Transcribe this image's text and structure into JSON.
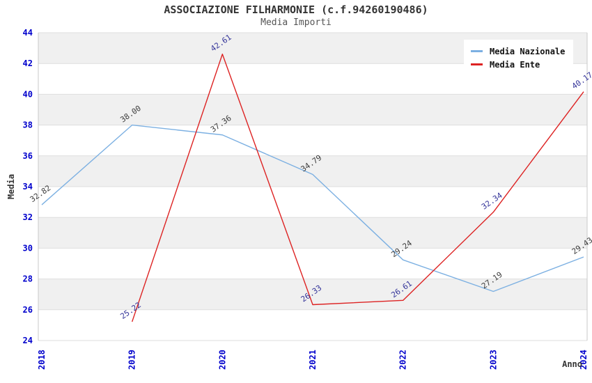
{
  "header": {
    "title": "ASSOCIAZIONE FILHARMONIE (c.f.94260190486)",
    "subtitle": "Media Importi"
  },
  "legend": {
    "items": [
      {
        "label": "Media Nazionale",
        "color": "#7cb0e2"
      },
      {
        "label": "Media Ente",
        "color": "#dd2222"
      }
    ]
  },
  "axes": {
    "y_label": "Media",
    "x_label": "Anno",
    "tick_color": "#0000cc",
    "axis_label_color": "#333333",
    "y_ticks": [
      "24",
      "26",
      "28",
      "30",
      "32",
      "34",
      "36",
      "38",
      "40",
      "42",
      "44"
    ],
    "x_ticks": [
      "2018",
      "2019",
      "2020",
      "2021",
      "2022",
      "2023",
      "2024"
    ]
  },
  "chart_data": {
    "type": "line",
    "title": "ASSOCIAZIONE FILHARMONIE (c.f.94260190486)",
    "subtitle": "Media Importi",
    "xlabel": "Anno",
    "ylabel": "Media",
    "x": [
      2018,
      2019,
      2020,
      2021,
      2022,
      2023,
      2024
    ],
    "series": [
      {
        "name": "Media Nazionale",
        "color": "#7cb0e2",
        "label_color": "#3c3c3c",
        "x": [
          2018,
          2019,
          2020,
          2021,
          2022,
          2023,
          2024
        ],
        "values": [
          32.82,
          38.0,
          37.36,
          34.79,
          29.24,
          27.19,
          29.43
        ],
        "labels": [
          "32.82",
          "38.00",
          "37.36",
          "34.79",
          "29.24",
          "27.19",
          "29.43"
        ]
      },
      {
        "name": "Media Ente",
        "color": "#dd2222",
        "label_color": "#333399",
        "x": [
          2019,
          2020,
          2021,
          2022,
          2023,
          2024
        ],
        "values": [
          25.22,
          42.61,
          26.33,
          26.61,
          32.34,
          40.17
        ],
        "labels": [
          "25.22",
          "42.61",
          "26.33",
          "26.61",
          "32.34",
          "40.17"
        ]
      }
    ],
    "ylim": [
      24,
      44
    ],
    "y_tick_step": 2,
    "xlim": [
      2018,
      2024
    ],
    "grid": "horizontal",
    "band_fill": "#f0f0f0",
    "grid_color": "#dedede",
    "spine_color": "#c8c8c8",
    "legend_position": "top-right"
  }
}
